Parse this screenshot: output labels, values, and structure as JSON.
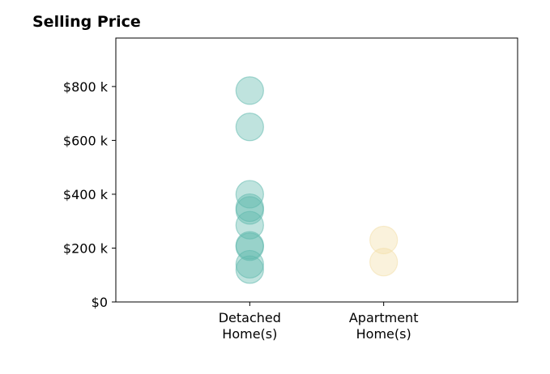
{
  "chart_data": {
    "type": "scatter",
    "title": "Selling Price",
    "xlabel": "",
    "ylabel": "",
    "categories": [
      {
        "line1": "Detached",
        "line2": "Home(s)"
      },
      {
        "line1": "Apartment",
        "line2": "Home(s)"
      }
    ],
    "y_ticks": [
      {
        "value": 0,
        "label": "$0"
      },
      {
        "value": 200,
        "label": "$200 k"
      },
      {
        "value": 400,
        "label": "$400 k"
      },
      {
        "value": 600,
        "label": "$600 k"
      },
      {
        "value": 800,
        "label": "$800 k"
      }
    ],
    "ylim": [
      0,
      980
    ],
    "xlim": [
      -1,
      2
    ],
    "grid": false,
    "series": [
      {
        "category_index": 0,
        "color": "#5fb8ad",
        "values": [
          785,
          650,
          400,
          350,
          340,
          285,
          210,
          205,
          140,
          120
        ]
      },
      {
        "category_index": 1,
        "color": "#f3dfa8",
        "values": [
          230,
          148
        ]
      }
    ]
  }
}
